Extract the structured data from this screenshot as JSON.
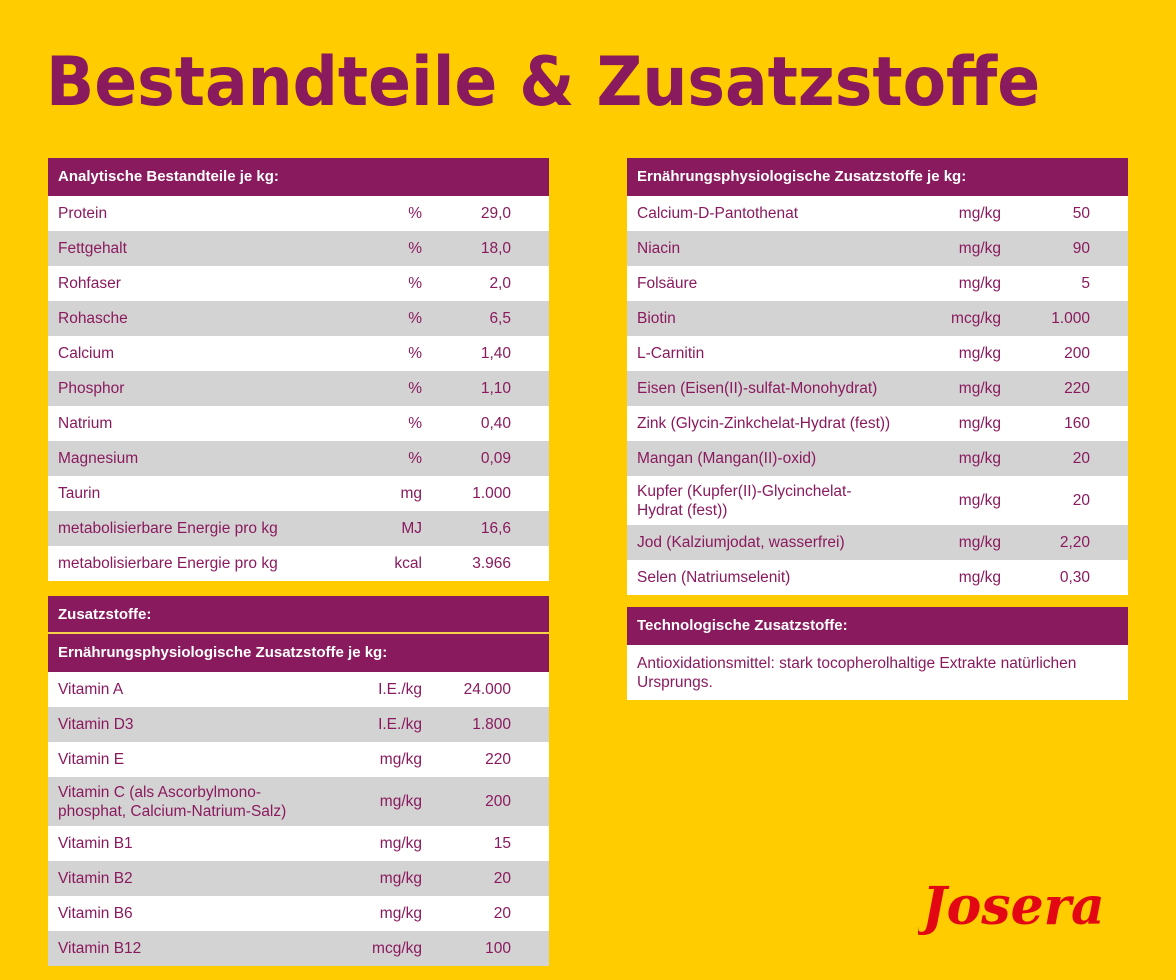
{
  "title": "Bestandteile & Zusatzstoffe",
  "analytic": {
    "header": "Analytische Bestandteile je kg:",
    "rows": [
      {
        "name": "Protein",
        "unit": "%",
        "value": "29,0"
      },
      {
        "name": "Fettgehalt",
        "unit": "%",
        "value": "18,0"
      },
      {
        "name": "Rohfaser",
        "unit": "%",
        "value": "2,0"
      },
      {
        "name": "Rohasche",
        "unit": "%",
        "value": "6,5"
      },
      {
        "name": "Calcium",
        "unit": "%",
        "value": "1,40"
      },
      {
        "name": "Phosphor",
        "unit": "%",
        "value": "1,10"
      },
      {
        "name": "Natrium",
        "unit": "%",
        "value": "0,40"
      },
      {
        "name": "Magnesium",
        "unit": "%",
        "value": "0,09"
      },
      {
        "name": "Taurin",
        "unit": "mg",
        "value": "1.000"
      },
      {
        "name": "metabolisierbare Energie pro kg",
        "unit": "MJ",
        "value": "16,6"
      },
      {
        "name": "metabolisierbare Energie pro kg",
        "unit": "kcal",
        "value": "3.966"
      }
    ]
  },
  "additives": {
    "header": "Zusatzstoffe:",
    "subheader": "Ernährungsphysiologische Zusatzstoffe je kg:",
    "rows": [
      {
        "name": "Vitamin A",
        "unit": "I.E./kg",
        "value": "24.000"
      },
      {
        "name": "Vitamin D3",
        "unit": "I.E./kg",
        "value": "1.800"
      },
      {
        "name": "Vitamin E",
        "unit": "mg/kg",
        "value": "220"
      },
      {
        "name": "Vitamin C (als Ascorbylmono-phosphat, Calcium-Natrium-Salz)",
        "line1": "Vitamin C (als Ascorbylmono-",
        "line2": "phosphat, Calcium-Natrium-Salz)",
        "unit": "mg/kg",
        "value": "200"
      },
      {
        "name": "Vitamin B1",
        "unit": "mg/kg",
        "value": "15"
      },
      {
        "name": "Vitamin B2",
        "unit": "mg/kg",
        "value": "20"
      },
      {
        "name": "Vitamin B6",
        "unit": "mg/kg",
        "value": "20"
      },
      {
        "name": "Vitamin B12",
        "unit": "mcg/kg",
        "value": "100"
      }
    ]
  },
  "nutritional": {
    "header": "Ernährungsphysiologische Zusatzstoffe je kg:",
    "rows": [
      {
        "name": "Calcium-D-Pantothenat",
        "unit": "mg/kg",
        "value": "50"
      },
      {
        "name": "Niacin",
        "unit": "mg/kg",
        "value": "90"
      },
      {
        "name": "Folsäure",
        "unit": "mg/kg",
        "value": "5"
      },
      {
        "name": "Biotin",
        "unit": "mcg/kg",
        "value": "1.000"
      },
      {
        "name": "L-Carnitin",
        "unit": "mg/kg",
        "value": "200"
      },
      {
        "name": "Eisen (Eisen(II)-sulfat-Monohydrat)",
        "unit": "mg/kg",
        "value": "220"
      },
      {
        "name": "Zink (Glycin-Zinkchelat-Hydrat (fest))",
        "unit": "mg/kg",
        "value": "160"
      },
      {
        "name": "Mangan (Mangan(II)-oxid)",
        "unit": "mg/kg",
        "value": "20"
      },
      {
        "name": "Kupfer (Kupfer(II)-Glycinchelat-Hydrat (fest))",
        "line1": "Kupfer (Kupfer(II)-Glycinchelat-",
        "line2": "Hydrat (fest))",
        "unit": "mg/kg",
        "value": "20"
      },
      {
        "name": "Jod (Kalziumjodat, wasserfrei)",
        "unit": "mg/kg",
        "value": "2,20"
      },
      {
        "name": "Selen (Natriumselenit)",
        "unit": "mg/kg",
        "value": "0,30"
      }
    ]
  },
  "technological": {
    "header": "Technologische Zusatzstoffe:",
    "text": "Antioxidationsmittel: stark tocopherolhaltige Extrakte natürlichen Ursprungs."
  },
  "logo": {
    "text": "Josera",
    "color": "#E30613"
  },
  "colors": {
    "background": "#FFCC00",
    "accent": "#8A1A5E",
    "row_alt": "#D3D3D3"
  }
}
